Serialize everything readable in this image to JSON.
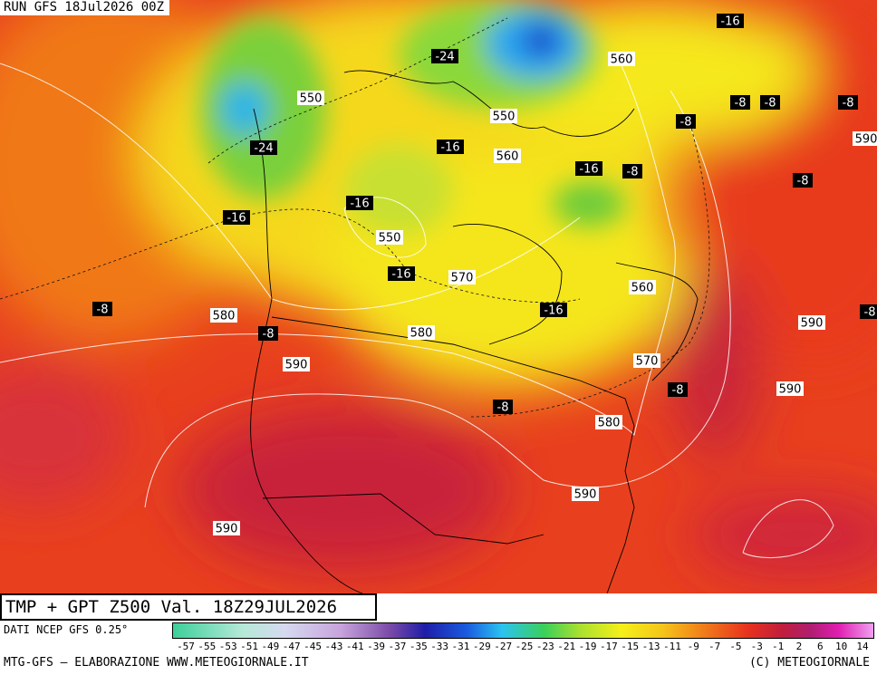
{
  "header": {
    "run": "RUN GFS 18Jul2026 00Z"
  },
  "footer": {
    "title": "TMP + GPT Z500 Val. 18Z29JUL2026",
    "source": "DATI NCEP GFS 0.25°",
    "credit": "MTG-GFS — ELABORAZIONE WWW.METEOGIORNALE.IT",
    "copyright": "(C) METEOGIORNALE"
  },
  "colorbar": {
    "ticks": [
      -57,
      -55,
      -53,
      -51,
      -49,
      -47,
      -45,
      -43,
      -41,
      -39,
      -37,
      -35,
      -33,
      -31,
      -29,
      -27,
      -25,
      -23,
      -21,
      -19,
      -17,
      -15,
      -13,
      -11,
      -9,
      -7,
      -5,
      -3,
      -1,
      2,
      6,
      10,
      14
    ]
  },
  "map": {
    "height_labels": [
      "550",
      "550",
      "560",
      "550",
      "570",
      "560",
      "560",
      "580",
      "580",
      "590",
      "570",
      "580",
      "590",
      "590",
      "590",
      "590",
      "590"
    ],
    "temp_labels": [
      "-24",
      "-24",
      "-16",
      "-16",
      "-16",
      "-8",
      "-8",
      "-8",
      "-8",
      "-8",
      "-8",
      "-16",
      "-16",
      "-16",
      "-16",
      "-8",
      "-8",
      "-8",
      "-8",
      "-8"
    ]
  }
}
